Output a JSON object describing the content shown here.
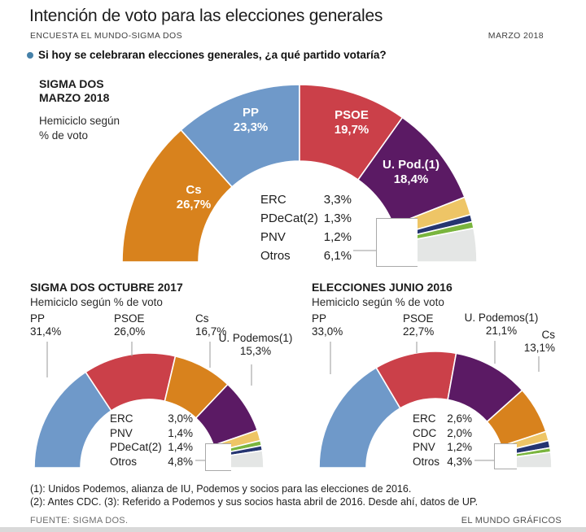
{
  "header": {
    "title": "Intención de voto para las elecciones generales",
    "subtitle": "ENCUESTA EL MUNDO-SIGMA DOS",
    "date": "MARZO 2018",
    "question": "Si hoy se celebraran elecciones generales, ¿a qué partido votaría?"
  },
  "colors": {
    "pp_blue": "#6f99c9",
    "psoe_red": "#cb4049",
    "cs_orange": "#d8821d",
    "podemos_purple": "#5b1a64",
    "erc_yellow": "#eec566",
    "pdecat_navy": "#253571",
    "pnv_green": "#7ab53e",
    "otros_gray": "#e4e6e5",
    "bullet_blue": "#4681a9"
  },
  "chart_data": [
    {
      "type": "pie",
      "variant": "hemicycle-donut",
      "id": "main",
      "title_lines": [
        "SIGMA DOS",
        "MARZO 2018"
      ],
      "subtitle_lines": [
        "Hemiciclo según",
        "% de voto"
      ],
      "unit": "% de voto",
      "segments": [
        {
          "party": "Cs",
          "pct": 26.7,
          "display": "26,7%",
          "color": "#d8821d"
        },
        {
          "party": "PP",
          "pct": 23.3,
          "display": "23,3%",
          "color": "#6f99c9"
        },
        {
          "party": "PSOE",
          "pct": 19.7,
          "display": "19,7%",
          "color": "#cb4049"
        },
        {
          "party": "U. Pod.(1)",
          "pct": 18.4,
          "display": "18,4%",
          "color": "#5b1a64"
        },
        {
          "party": "ERC",
          "pct": 3.3,
          "display": "3,3%",
          "color": "#eec566"
        },
        {
          "party": "PDeCat(2)",
          "pct": 1.3,
          "display": "1,3%",
          "color": "#253571"
        },
        {
          "party": "PNV",
          "pct": 1.2,
          "display": "1,2%",
          "color": "#7ab53e"
        },
        {
          "party": "Otros",
          "pct": 6.1,
          "display": "6,1%",
          "color": "#e4e6e5"
        }
      ],
      "legend": [
        {
          "label": "ERC",
          "value": "3,3%"
        },
        {
          "label": "PDeCat(2)",
          "value": "1,3%"
        },
        {
          "label": "PNV",
          "value": "1,2%"
        },
        {
          "label": "Otros",
          "value": "6,1%"
        }
      ]
    },
    {
      "type": "pie",
      "variant": "hemicycle-donut",
      "id": "oct",
      "title": "SIGMA DOS OCTUBRE 2017",
      "subtitle": "Hemiciclo según % de voto",
      "unit": "% de voto",
      "segments": [
        {
          "party": "PP",
          "pct": 31.4,
          "display": "31,4%",
          "color": "#6f99c9"
        },
        {
          "party": "PSOE",
          "pct": 26.0,
          "display": "26,0%",
          "color": "#cb4049"
        },
        {
          "party": "Cs",
          "pct": 16.7,
          "display": "16,7%",
          "color": "#d8821d"
        },
        {
          "party": "U. Podemos(1)",
          "pct": 15.3,
          "display": "15,3%",
          "color": "#5b1a64"
        },
        {
          "party": "ERC",
          "pct": 3.0,
          "display": "3,0%",
          "color": "#eec566"
        },
        {
          "party": "PNV",
          "pct": 1.4,
          "display": "1,4%",
          "color": "#7ab53e"
        },
        {
          "party": "PDeCat(2)",
          "pct": 1.4,
          "display": "1,4%",
          "color": "#253571"
        },
        {
          "party": "Otros",
          "pct": 4.8,
          "display": "4,8%",
          "color": "#e4e6e5"
        }
      ],
      "legend": [
        {
          "label": "ERC",
          "value": "3,0%"
        },
        {
          "label": "PNV",
          "value": "1,4%"
        },
        {
          "label": "PDeCat(2)",
          "value": "1,4%"
        },
        {
          "label": "Otros",
          "value": "4,8%"
        }
      ]
    },
    {
      "type": "pie",
      "variant": "hemicycle-donut",
      "id": "jun",
      "title": "ELECCIONES JUNIO 2016",
      "subtitle": "Hemiciclo según % de voto",
      "unit": "% de voto",
      "segments": [
        {
          "party": "PP",
          "pct": 33.0,
          "display": "33,0%",
          "color": "#6f99c9"
        },
        {
          "party": "PSOE",
          "pct": 22.7,
          "display": "22,7%",
          "color": "#cb4049"
        },
        {
          "party": "U. Podemos(1)",
          "pct": 21.1,
          "display": "21,1%",
          "color": "#5b1a64"
        },
        {
          "party": "Cs",
          "pct": 13.1,
          "display": "13,1%",
          "color": "#d8821d"
        },
        {
          "party": "ERC",
          "pct": 2.6,
          "display": "2,6%",
          "color": "#eec566"
        },
        {
          "party": "CDC",
          "pct": 2.0,
          "display": "2,0%",
          "color": "#253571"
        },
        {
          "party": "PNV",
          "pct": 1.2,
          "display": "1,2%",
          "color": "#7ab53e"
        },
        {
          "party": "Otros",
          "pct": 4.3,
          "display": "4,3%",
          "color": "#e4e6e5"
        }
      ],
      "legend": [
        {
          "label": "ERC",
          "value": "2,6%"
        },
        {
          "label": "CDC",
          "value": "2,0%"
        },
        {
          "label": "PNV",
          "value": "1,2%"
        },
        {
          "label": "Otros",
          "value": "4,3%"
        }
      ]
    }
  ],
  "footnotes": [
    "(1): Unidos Podemos, alianza de IU, Podemos y socios para las elecciones de 2016.",
    "(2): Antes CDC. (3): Referido a Podemos y sus socios hasta abril de 2016. Desde ahí, datos de UP."
  ],
  "footer": {
    "source": "FUENTE: SIGMA DOS.",
    "credit": "EL MUNDO GRÁFICOS"
  }
}
